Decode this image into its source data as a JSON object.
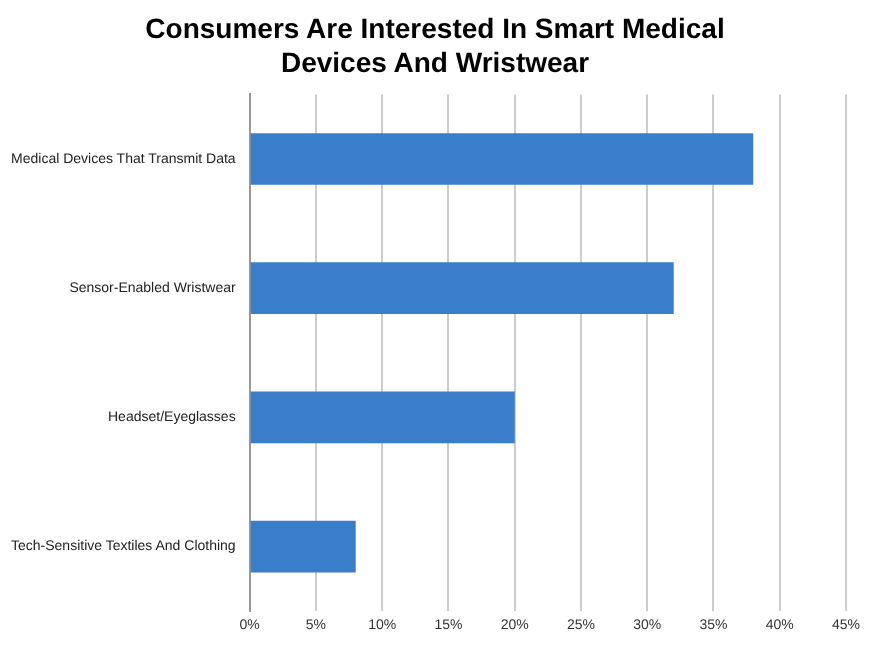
{
  "chart_data": {
    "type": "bar",
    "orientation": "horizontal",
    "title": "Consumers Are Interested In Smart Medical Devices And Wristwear",
    "categories": [
      "Medical Devices That Transmit Data",
      "Sensor-Enabled Wristwear",
      "Headset/Eyeglasses",
      "Tech-Sensitive Textiles And Clothing"
    ],
    "values": [
      38,
      32,
      20,
      8
    ],
    "color": "#3a7dc9",
    "xlim": [
      0,
      45
    ],
    "xticks": [
      {
        "value": 0,
        "label": "0%"
      },
      {
        "value": 5,
        "label": "5%"
      },
      {
        "value": 10,
        "label": "10%"
      },
      {
        "value": 15,
        "label": "15%"
      },
      {
        "value": 20,
        "label": "20%"
      },
      {
        "value": 25,
        "label": "25%"
      },
      {
        "value": 30,
        "label": "30%"
      },
      {
        "value": 35,
        "label": "35%"
      },
      {
        "value": 40,
        "label": "40%"
      },
      {
        "value": 45,
        "label": "45%"
      }
    ],
    "grid": "x"
  }
}
